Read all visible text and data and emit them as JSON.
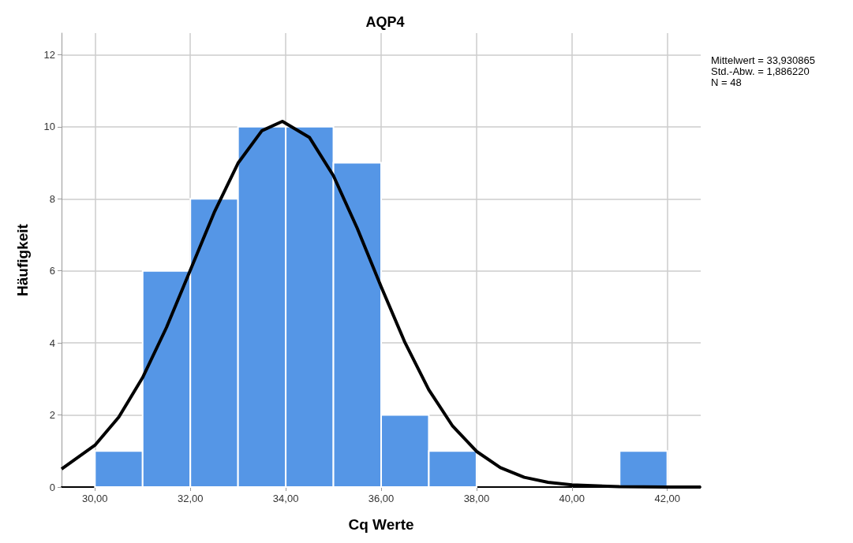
{
  "chart_data": {
    "type": "histogram",
    "title": "AQP4",
    "xlabel": "Cq Werte",
    "ylabel": "Häufigkeit",
    "bins": [
      30,
      31,
      32,
      33,
      34,
      35,
      36,
      37,
      38,
      39,
      40,
      41,
      42
    ],
    "series": [
      {
        "color": "#5596e6",
        "values": [
          1,
          6,
          8,
          10,
          10,
          9,
          2,
          1,
          0,
          0,
          0,
          1
        ]
      },
      {
        "type": "line",
        "color": "#000000",
        "x": [
          29.3,
          30,
          30.5,
          31,
          31.5,
          32,
          32.5,
          33,
          33.5,
          33.93,
          34.5,
          35,
          35.5,
          36,
          36.5,
          37,
          37.5,
          38,
          38.5,
          39,
          39.5,
          40,
          41,
          42,
          42.7
        ],
        "values": [
          0.5,
          1.16,
          1.94,
          3.04,
          4.43,
          6.02,
          7.62,
          8.99,
          9.89,
          10.15,
          9.7,
          8.64,
          7.18,
          5.56,
          4.01,
          2.7,
          1.69,
          0.99,
          0.54,
          0.27,
          0.13,
          0.06,
          0.01,
          0,
          0
        ]
      }
    ],
    "marker": "none",
    "xlim": [
      29.3,
      42.7
    ],
    "xticks": [
      {
        "value": 30,
        "label": "30,00"
      },
      {
        "value": 32,
        "label": "32,00"
      },
      {
        "value": 34,
        "label": "34,00"
      },
      {
        "value": 36,
        "label": "36,00"
      },
      {
        "value": 38,
        "label": "38,00"
      },
      {
        "value": 40,
        "label": "40,00"
      },
      {
        "value": 42,
        "label": "42,00"
      }
    ],
    "ylim": [
      0,
      12.6
    ],
    "yticks": [
      0,
      2,
      4,
      6,
      8,
      10,
      12
    ],
    "grid": true,
    "annotations": [
      "Mittelwert = 33,930865",
      "Std.-Abw. = 1,886220",
      "N = 48"
    ]
  }
}
